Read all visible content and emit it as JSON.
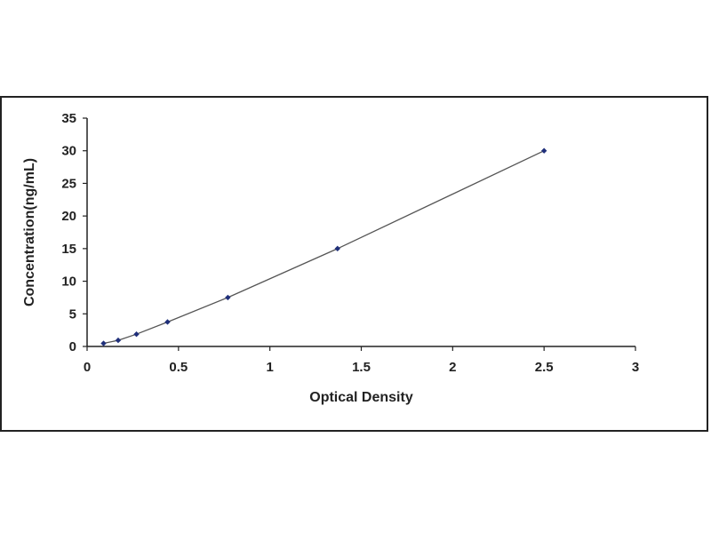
{
  "chart_data": {
    "type": "scatter",
    "xlabel": "Optical Density",
    "ylabel": "Concentration(ng/mL)",
    "xlim": [
      0,
      3
    ],
    "ylim": [
      0,
      35
    ],
    "x_ticks": [
      0,
      0.5,
      1,
      1.5,
      2,
      2.5,
      3
    ],
    "x_tick_labels": [
      "0",
      "0.5",
      "1",
      "1.5",
      "2",
      "2.5",
      "3"
    ],
    "y_ticks": [
      0,
      5,
      10,
      15,
      20,
      25,
      30,
      35
    ],
    "y_tick_labels": [
      "0",
      "5",
      "10",
      "15",
      "20",
      "25",
      "30",
      "35"
    ],
    "grid": false,
    "legend": "none",
    "series": [
      {
        "x": [
          0.09,
          0.17,
          0.27,
          0.44,
          0.77,
          1.37,
          2.5
        ],
        "y": [
          0.47,
          0.94,
          1.88,
          3.75,
          7.5,
          15,
          30
        ]
      }
    ],
    "trendline": true,
    "colors": {
      "marker": "#1f2f7a",
      "line": "#555555",
      "axis": "#222222"
    }
  }
}
